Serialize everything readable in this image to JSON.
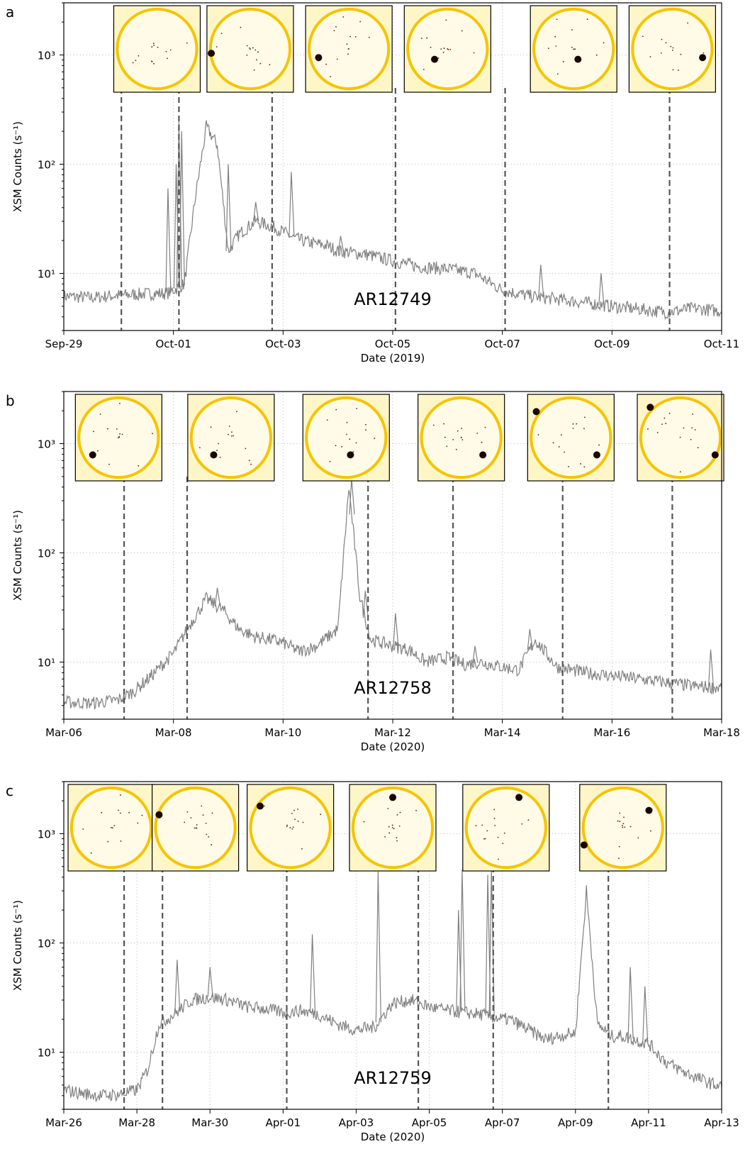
{
  "colors": {
    "curve": "#808080",
    "dashed": "#555555",
    "grid": "#cccccc",
    "axes": "#000000",
    "sun_disk": "#fffbe6",
    "sun_limb": "#f5c400",
    "active_region": "#1a0500"
  },
  "chart_data": [
    {
      "type": "line",
      "panel_label": "a",
      "xlabel": "Date (2019)",
      "ylabel": "XSM Counts (s⁻¹)",
      "yscale": "log",
      "ylim": [
        3,
        3000
      ],
      "xlim": [
        0,
        12
      ],
      "x_ticks": [
        0,
        2,
        4,
        6,
        8,
        10,
        12
      ],
      "x_tick_labels": [
        "Sep-29",
        "Oct-01",
        "Oct-03",
        "Oct-05",
        "Oct-07",
        "Oct-09",
        "Oct-11"
      ],
      "y_ticks": [
        10,
        100,
        1000
      ],
      "y_tick_labels": [
        "10¹",
        "10²",
        "10³"
      ],
      "grid": true,
      "annotation": "AR12749",
      "series": [
        {
          "x": [
            0,
            0.5,
            1,
            1.5,
            1.9,
            2.2,
            2.4,
            2.6,
            2.8,
            3.0,
            3.2,
            3.5,
            3.8,
            4.0,
            4.2,
            4.5,
            4.8,
            5.0,
            5.5,
            6.0,
            6.5,
            7.0,
            7.5,
            8.0,
            8.5,
            9.0,
            9.5,
            10.0,
            10.5,
            11.0,
            11.5,
            12.0
          ],
          "y": [
            6.2,
            6.0,
            6.3,
            6.5,
            6.6,
            8,
            50,
            220,
            150,
            16,
            23,
            30,
            27,
            24,
            21,
            19,
            18,
            16,
            15,
            13,
            11.5,
            11,
            10,
            7,
            6.2,
            5.8,
            5.4,
            5,
            4.7,
            4.4,
            4.8,
            4.5
          ]
        }
      ],
      "spikes": [
        {
          "x": 1.9,
          "y": 60
        },
        {
          "x": 2.05,
          "y": 100
        },
        {
          "x": 2.1,
          "y": 250
        },
        {
          "x": 2.15,
          "y": 200
        },
        {
          "x": 3.0,
          "y": 100
        },
        {
          "x": 3.5,
          "y": 45
        },
        {
          "x": 4.15,
          "y": 85
        },
        {
          "x": 5.05,
          "y": 22
        },
        {
          "x": 8.7,
          "y": 12
        },
        {
          "x": 9.8,
          "y": 10
        }
      ],
      "marker_x": [
        1.05,
        2.1,
        3.8,
        6.05,
        8.05,
        11.05
      ],
      "inset_x": [
        1.7,
        3.4,
        5.2,
        7.0,
        9.3,
        11.1
      ],
      "inset_spots": [
        [],
        [
          {
            "fx": 0.05,
            "fy": 0.55
          }
        ],
        [
          {
            "fx": 0.15,
            "fy": 0.6
          }
        ],
        [
          {
            "fx": 0.35,
            "fy": 0.62
          }
        ],
        [
          {
            "fx": 0.55,
            "fy": 0.62
          }
        ],
        [
          {
            "fx": 0.85,
            "fy": 0.6
          }
        ]
      ]
    },
    {
      "type": "line",
      "panel_label": "b",
      "xlabel": "Date (2020)",
      "ylabel": "XSM Counts (s⁻¹)",
      "yscale": "log",
      "ylim": [
        3,
        3000
      ],
      "xlim": [
        0,
        12
      ],
      "x_ticks": [
        0,
        2,
        4,
        6,
        8,
        10,
        12
      ],
      "x_tick_labels": [
        "Mar-06",
        "Mar-08",
        "Mar-10",
        "Mar-12",
        "Mar-14",
        "Mar-16",
        "Mar-18"
      ],
      "y_ticks": [
        10,
        100,
        1000
      ],
      "y_tick_labels": [
        "10¹",
        "10²",
        "10³"
      ],
      "grid": true,
      "annotation": "AR12758",
      "series": [
        {
          "x": [
            0,
            0.5,
            1.0,
            1.3,
            1.6,
            2.0,
            2.3,
            2.6,
            2.9,
            3.2,
            3.5,
            3.8,
            4.0,
            4.3,
            4.6,
            5.0,
            5.2,
            5.4,
            5.6,
            5.8,
            6.0,
            6.3,
            6.6,
            7.0,
            7.3,
            7.6,
            8.0,
            8.3,
            8.6,
            9.0,
            9.5,
            10.0,
            10.5,
            11.0,
            11.5,
            12.0
          ],
          "y": [
            4.3,
            4.2,
            4.5,
            5.5,
            7.5,
            12,
            22,
            38,
            30,
            20,
            17,
            16,
            15,
            12.5,
            14,
            20,
            400,
            40,
            16,
            15,
            14,
            13,
            10,
            11,
            9.5,
            10,
            9,
            8.5,
            16,
            9,
            8,
            7.5,
            7,
            6.5,
            6,
            5.8
          ]
        }
      ],
      "spikes": [
        {
          "x": 2.8,
          "y": 48
        },
        {
          "x": 5.25,
          "y": 480
        },
        {
          "x": 5.5,
          "y": 45
        },
        {
          "x": 6.05,
          "y": 28
        },
        {
          "x": 7.5,
          "y": 14
        },
        {
          "x": 8.5,
          "y": 20
        },
        {
          "x": 11.8,
          "y": 13
        }
      ],
      "marker_x": [
        1.1,
        2.25,
        5.55,
        7.1,
        9.1,
        11.1
      ],
      "inset_x": [
        1.0,
        3.05,
        5.15,
        7.25,
        9.25,
        11.25
      ],
      "inset_spots": [
        [
          {
            "fx": 0.2,
            "fy": 0.7
          }
        ],
        [
          {
            "fx": 0.3,
            "fy": 0.7
          }
        ],
        [
          {
            "fx": 0.55,
            "fy": 0.7
          }
        ],
        [
          {
            "fx": 0.75,
            "fy": 0.7
          }
        ],
        [
          {
            "fx": 0.1,
            "fy": 0.2
          },
          {
            "fx": 0.8,
            "fy": 0.7
          }
        ],
        [
          {
            "fx": 0.15,
            "fy": 0.15
          },
          {
            "fx": 0.9,
            "fy": 0.7
          }
        ]
      ]
    },
    {
      "type": "line",
      "panel_label": "c",
      "xlabel": "Date (2020)",
      "ylabel": "XSM Counts (s⁻¹)",
      "yscale": "log",
      "ylim": [
        3,
        3000
      ],
      "xlim": [
        0,
        18
      ],
      "x_ticks": [
        0,
        2,
        4,
        6,
        8,
        10,
        12,
        14,
        16,
        18
      ],
      "x_tick_labels": [
        "Mar-26",
        "Mar-28",
        "Mar-30",
        "Apr-01",
        "Apr-03",
        "Apr-05",
        "Apr-07",
        "Apr-09",
        "Apr-11",
        "Apr-13"
      ],
      "y_ticks": [
        10,
        100,
        1000
      ],
      "y_tick_labels": [
        "10¹",
        "10²",
        "10³"
      ],
      "grid": true,
      "annotation": "AR12759",
      "series": [
        {
          "x": [
            0,
            0.5,
            1.0,
            1.5,
            2.0,
            2.3,
            2.6,
            3.0,
            3.5,
            4.0,
            4.5,
            5.0,
            5.5,
            6.0,
            6.5,
            7.0,
            7.5,
            8.0,
            8.5,
            9.0,
            9.5,
            10.0,
            10.5,
            11.0,
            11.5,
            12.0,
            12.2,
            13.2,
            13.5,
            14.0,
            14.3,
            14.6,
            15.0,
            15.3,
            15.6,
            16.0,
            16.5,
            17.0,
            17.5,
            18.0
          ],
          "y": [
            4.5,
            4.2,
            4.0,
            4.1,
            4.5,
            7,
            18,
            22,
            30,
            32,
            30,
            26,
            25,
            23,
            24,
            22,
            18,
            16,
            17,
            28,
            30,
            26,
            24,
            23,
            22,
            20,
            20,
            13,
            14,
            15,
            300,
            18,
            14,
            14,
            13,
            12,
            8,
            6.5,
            5.5,
            4.8
          ]
        }
      ],
      "spikes": [
        {
          "x": 3.1,
          "y": 70
        },
        {
          "x": 4.0,
          "y": 60
        },
        {
          "x": 6.8,
          "y": 120
        },
        {
          "x": 8.6,
          "y": 450
        },
        {
          "x": 10.8,
          "y": 200
        },
        {
          "x": 10.9,
          "y": 470
        },
        {
          "x": 11.6,
          "y": 420
        },
        {
          "x": 11.7,
          "y": 470
        },
        {
          "x": 15.5,
          "y": 60
        },
        {
          "x": 15.9,
          "y": 40
        }
      ],
      "marker_x": [
        1.65,
        2.7,
        6.1,
        9.7,
        11.75,
        14.9
      ],
      "inset_x": [
        1.3,
        3.6,
        6.2,
        9.0,
        12.1,
        15.3
      ],
      "inset_spots": [
        [],
        [
          {
            "fx": 0.08,
            "fy": 0.35
          }
        ],
        [
          {
            "fx": 0.15,
            "fy": 0.25
          }
        ],
        [
          {
            "fx": 0.5,
            "fy": 0.15
          }
        ],
        [
          {
            "fx": 0.65,
            "fy": 0.15
          }
        ],
        [
          {
            "fx": 0.8,
            "fy": 0.3
          },
          {
            "fx": 0.05,
            "fy": 0.7
          }
        ]
      ]
    }
  ]
}
